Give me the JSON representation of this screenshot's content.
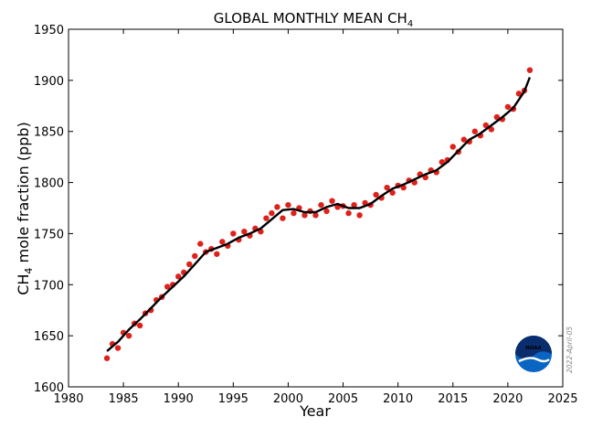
{
  "chart_data": {
    "type": "scatter",
    "title": "GLOBAL MONTHLY MEAN CH",
    "title_subscript": "4",
    "xlabel": "Year",
    "ylabel_prefix": "CH",
    "ylabel_subscript": "4",
    "ylabel_suffix": " mole fraction (ppb)",
    "xlim": [
      1980,
      2025
    ],
    "ylim": [
      1600,
      1950
    ],
    "x_ticks": [
      1980,
      1985,
      1990,
      1995,
      2000,
      2005,
      2010,
      2015,
      2020,
      2025
    ],
    "y_ticks": [
      1600,
      1650,
      1700,
      1750,
      1800,
      1850,
      1900,
      1950
    ],
    "grid": false,
    "logo_text": "NOAA",
    "date_stamp": "2022-April-05",
    "series": [
      {
        "kind": "monthly-points",
        "color": "#e0201b",
        "x": [
          1983.5,
          1984.0,
          1984.5,
          1985.0,
          1985.5,
          1986.0,
          1986.5,
          1987.0,
          1987.5,
          1988.0,
          1988.5,
          1989.0,
          1989.5,
          1990.0,
          1990.5,
          1991.0,
          1991.5,
          1992.0,
          1992.5,
          1993.0,
          1993.5,
          1994.0,
          1994.5,
          1995.0,
          1995.5,
          1996.0,
          1996.5,
          1997.0,
          1997.5,
          1998.0,
          1998.5,
          1999.0,
          1999.5,
          2000.0,
          2000.5,
          2001.0,
          2001.5,
          2002.0,
          2002.5,
          2003.0,
          2003.5,
          2004.0,
          2004.5,
          2005.0,
          2005.5,
          2006.0,
          2006.5,
          2007.0,
          2007.5,
          2008.0,
          2008.5,
          2009.0,
          2009.5,
          2010.0,
          2010.5,
          2011.0,
          2011.5,
          2012.0,
          2012.5,
          2013.0,
          2013.5,
          2014.0,
          2014.5,
          2015.0,
          2015.5,
          2016.0,
          2016.5,
          2017.0,
          2017.5,
          2018.0,
          2018.5,
          2019.0,
          2019.5,
          2020.0,
          2020.5,
          2021.0,
          2021.5,
          2022.0
        ],
        "y": [
          1628,
          1642,
          1638,
          1653,
          1650,
          1662,
          1660,
          1672,
          1675,
          1685,
          1688,
          1698,
          1700,
          1708,
          1712,
          1720,
          1728,
          1740,
          1732,
          1735,
          1730,
          1742,
          1738,
          1750,
          1744,
          1752,
          1748,
          1755,
          1752,
          1765,
          1770,
          1776,
          1765,
          1778,
          1770,
          1775,
          1768,
          1772,
          1768,
          1778,
          1772,
          1782,
          1776,
          1777,
          1770,
          1778,
          1768,
          1780,
          1778,
          1788,
          1785,
          1795,
          1790,
          1797,
          1795,
          1802,
          1800,
          1808,
          1805,
          1812,
          1810,
          1820,
          1822,
          1835,
          1830,
          1842,
          1840,
          1850,
          1846,
          1856,
          1852,
          1864,
          1862,
          1874,
          1872,
          1887,
          1890,
          1910
        ]
      },
      {
        "kind": "trend-line",
        "color": "#000000",
        "x": [
          1983.5,
          1984.5,
          1985.5,
          1986.5,
          1987.5,
          1988.5,
          1989.5,
          1990.5,
          1991.5,
          1992.5,
          1993.5,
          1994.5,
          1995.5,
          1996.5,
          1997.5,
          1998.5,
          1999.5,
          2000.5,
          2001.5,
          2002.5,
          2003.5,
          2004.5,
          2005.5,
          2006.5,
          2007.5,
          2008.5,
          2009.5,
          2010.5,
          2011.5,
          2012.5,
          2013.5,
          2014.5,
          2015.5,
          2016.5,
          2017.5,
          2018.5,
          2019.5,
          2020.5,
          2021.5,
          2022.0
        ],
        "y": [
          1635,
          1644,
          1656,
          1666,
          1677,
          1688,
          1698,
          1708,
          1720,
          1732,
          1736,
          1740,
          1746,
          1750,
          1755,
          1764,
          1773,
          1774,
          1771,
          1771,
          1776,
          1779,
          1775,
          1775,
          1779,
          1787,
          1794,
          1798,
          1803,
          1808,
          1812,
          1820,
          1831,
          1842,
          1848,
          1856,
          1864,
          1873,
          1889,
          1903
        ]
      }
    ]
  }
}
